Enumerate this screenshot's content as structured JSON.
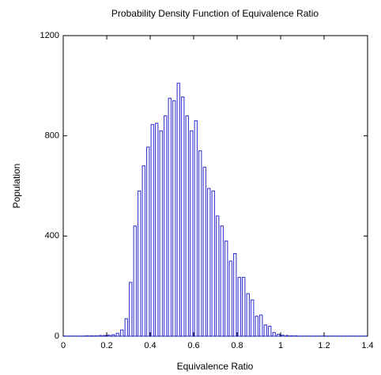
{
  "chart_data": {
    "type": "histogram",
    "title": "Probability Density Function of Equivalence Ratio",
    "xlabel": "Equivalence Ratio",
    "ylabel": "Population",
    "bins": [
      0,
      0.02,
      0.04,
      0.06,
      0.08,
      0.1,
      0.12,
      0.14,
      0.16,
      0.18,
      0.2,
      0.22,
      0.24,
      0.26,
      0.28,
      0.3,
      0.32,
      0.34,
      0.36,
      0.38,
      0.4,
      0.42,
      0.44,
      0.46,
      0.48,
      0.5,
      0.52,
      0.54,
      0.56,
      0.58,
      0.6,
      0.62,
      0.64,
      0.66,
      0.68,
      0.7,
      0.72,
      0.74,
      0.76,
      0.78,
      0.8,
      0.82,
      0.84,
      0.86,
      0.88,
      0.9,
      0.92,
      0.94,
      0.96,
      0.98,
      1,
      1.02,
      1.04,
      1.06,
      1.08,
      1.1,
      1.12,
      1.14,
      1.16,
      1.18,
      1.2,
      1.22,
      1.24,
      1.26,
      1.28,
      1.3,
      1.32,
      1.34,
      1.36,
      1.38,
      1.4
    ],
    "values": [
      1,
      1,
      1,
      1,
      1,
      2,
      2,
      2,
      3,
      3,
      4,
      6,
      12,
      25,
      70,
      215,
      440,
      580,
      680,
      755,
      845,
      850,
      820,
      880,
      950,
      940,
      1010,
      955,
      880,
      820,
      860,
      740,
      675,
      590,
      580,
      480,
      440,
      380,
      300,
      330,
      235,
      235,
      170,
      145,
      80,
      85,
      45,
      40,
      15,
      8,
      4,
      3,
      2,
      2,
      1,
      1,
      1,
      1,
      1,
      1,
      1,
      1,
      1,
      1,
      1,
      1,
      1,
      1,
      1,
      1
    ],
    "color": "#2a2ad0",
    "xlim": [
      0,
      1.4
    ],
    "xticks": [
      0,
      0.2,
      0.4,
      0.6,
      0.8,
      1,
      1.2,
      1.4
    ],
    "ylim": [
      0,
      1200
    ],
    "yticks": [
      0,
      400,
      800,
      1200
    ]
  }
}
